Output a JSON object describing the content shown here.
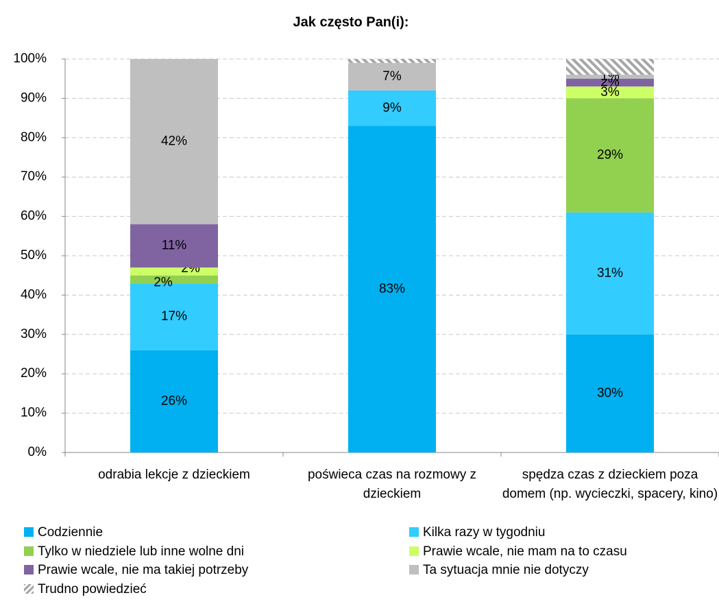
{
  "chart_data": {
    "type": "stacked_bar",
    "title": "Jak często Pan(i):",
    "categories": [
      "odrabia lekcje z dzieckiem",
      "poświeca czas na rozmowy z dzieckiem",
      "spędza czas z dzieckiem poza domem (np. wycieczki, spacery, kino)"
    ],
    "series": [
      {
        "name": "Codziennie",
        "color": "#00b0f0",
        "values": [
          26,
          83,
          30
        ],
        "value_labels": [
          "26%",
          "83%",
          "30%"
        ]
      },
      {
        "name": "Kilka razy w tygodniu",
        "color": "#33ccff",
        "values": [
          17,
          9,
          31
        ],
        "value_labels": [
          "17%",
          "9%",
          "31%"
        ]
      },
      {
        "name": "Tylko w niedziele lub inne wolne dni",
        "color": "#92d050",
        "values": [
          2,
          0,
          29
        ],
        "value_labels": [
          "2%",
          null,
          "29%"
        ]
      },
      {
        "name": "Prawie wcale, nie mam na to czasu",
        "color": "#ccff66",
        "values": [
          2,
          0,
          3
        ],
        "value_labels": [
          "2%",
          null,
          "3%"
        ]
      },
      {
        "name": "Prawie wcale, nie ma takiej potrzeby",
        "color": "#8064a2",
        "values": [
          11,
          0,
          2
        ],
        "value_labels": [
          "11%",
          null,
          "2%"
        ]
      },
      {
        "name": "Ta sytuacja mnie nie dotyczy",
        "color": "#bfbfbf",
        "values": [
          42,
          7,
          1
        ],
        "value_labels": [
          "42%",
          "7%",
          "1%"
        ]
      },
      {
        "name": "Trudno powiedzieć",
        "color": "#a6a6a6",
        "hatch": true,
        "values": [
          0,
          1,
          4
        ],
        "value_labels": [
          null,
          null,
          null
        ]
      }
    ],
    "ylim": [
      0,
      100
    ],
    "yticks": [
      {
        "value": 0,
        "label": "0%"
      },
      {
        "value": 10,
        "label": "10%"
      },
      {
        "value": 20,
        "label": "20%"
      },
      {
        "value": 30,
        "label": "30%"
      },
      {
        "value": 40,
        "label": "40%"
      },
      {
        "value": 50,
        "label": "50%"
      },
      {
        "value": 60,
        "label": "60%"
      },
      {
        "value": 70,
        "label": "70%"
      },
      {
        "value": 80,
        "label": "80%"
      },
      {
        "value": 90,
        "label": "90%"
      },
      {
        "value": 100,
        "label": "100%"
      }
    ],
    "grid": true,
    "legend": "bottom"
  }
}
